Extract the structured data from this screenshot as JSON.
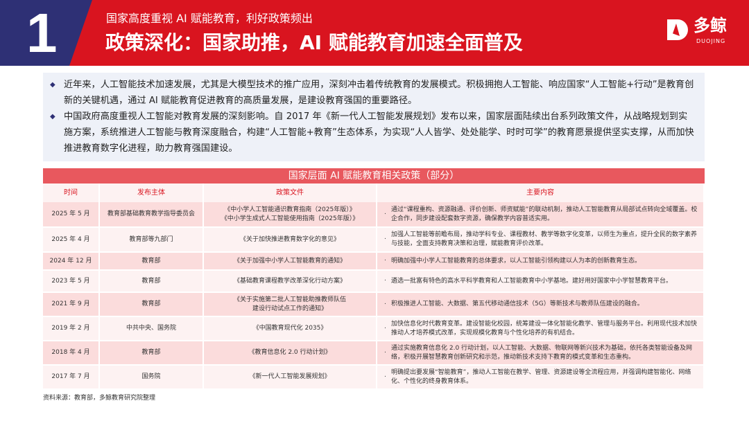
{
  "header": {
    "number": "1",
    "subtitle": "国家高度重视 AI 赋能教育，利好政策频出",
    "title": "政策深化：国家助推，AI 赋能教育加速全面普及",
    "logo_text": "多鲸",
    "logo_en": "DUOJING",
    "colors": {
      "red": "#d9141f",
      "blue": "#2e3075"
    }
  },
  "intro": [
    "近年来，人工智能技术加速发展，尤其是大模型技术的推广应用，深刻冲击着传统教育的发展模式。积极拥抱人工智能、响应国家“人工智能+行动”是教育创新的关键机遇，通过 AI 赋能教育促进教育的高质量发展，是建设教育强国的重要路径。",
    "中国政府高度重视人工智能对教育发展的深刻影响。自 2017 年《新一代人工智能发展规划》发布以来，国家层面陆续出台系列政策文件，从战略规划到实施方案，系统推进人工智能与教育深度融合，构建“人工智能+教育”生态体系，为实现“人人皆学、处处能学、时时可学”的教育愿景提供坚实支撑，从而加快推进教育数字化进程，助力教育强国建设。"
  ],
  "table": {
    "title": "国家层面 AI 赋能教育相关政策（部分）",
    "headers": [
      "时间",
      "发布主体",
      "政策文件",
      "主要内容"
    ],
    "rows": [
      {
        "time": "2025 年 5 月",
        "issuer": "教育部基础教育教学指导委员会",
        "doc": "《中小学人工智能通识教育指南（2025年版）》\n《中小学生成式人工智能使用指南（2025年版）》",
        "content": "通过“课程重构、资源融通、评价创新、师资赋能”的联动机制，推动人工智能教育从局部试点转向全域覆盖。校企合作，同步建设配套数字资源，确保教学内容普适实用。"
      },
      {
        "time": "2025 年 4 月",
        "issuer": "教育部等九部门",
        "doc": "《关于加快推进教育数字化的意见》",
        "content": "加强人工智能等前瞻布局，推动学科专业、课程教材、教学等数字化变革，以师生为重点，提升全民的数字素养与技能，全面支持教育决策和治理，赋能教育评价改革。"
      },
      {
        "time": "2024 年 12 月",
        "issuer": "教育部",
        "doc": "《关于加强中小学人工智能教育的通知》",
        "content": "明确加强中小学人工智能教育的总体要求，以人工智能引领构建以人为本的创新教育生态。"
      },
      {
        "time": "2023 年 5 月",
        "issuer": "教育部",
        "doc": "《基础教育课程教学改革深化行动方案》",
        "content": "遴选一批富有特色的高水平科学教育和人工智能教育中小学基地。建好用好国家中小学智慧教育平台。"
      },
      {
        "time": "2021 年 9 月",
        "issuer": "教育部",
        "doc": "《关于实施第二批人工智能助推教师队伍\n建设行动试点工作的通知》",
        "content": "积极推进人工智能、大数据、第五代移动通信技术（5G）等新技术与教师队伍建设的融合。"
      },
      {
        "time": "2019 年 2 月",
        "issuer": "中共中央、国务院",
        "doc": "《中国教育现代化 2035》",
        "content": "加快信息化时代教育变革。建设智能化校园，统筹建设一体化智能化教学、管理与服务平台。利用现代技术加快推动人才培养模式改革，实现规模化教育与个性化培养的有机结合。"
      },
      {
        "time": "2018 年 4 月",
        "issuer": "教育部",
        "doc": "《教育信息化 2.0 行动计划》",
        "content": "通过实施教育信息化 2.0 行动计划，以人工智能、大数据、物联网等新兴技术为基础，依托各类智能设备及网络，积极开展智慧教育创新研究和示范，推动新技术支持下教育的模式变革和生态重构。"
      },
      {
        "time": "2017 年 7 月",
        "issuer": "国务院",
        "doc": "《新一代人工智能发展规划》",
        "content": "明确提出要发展“智能教育”，推动人工智能在教学、管理、资源建设等全流程应用，并强调构建智能化、网络化、个性化的终身教育体系。"
      }
    ]
  },
  "source": "资料来源：教育部，多鲸教育研究院整理"
}
